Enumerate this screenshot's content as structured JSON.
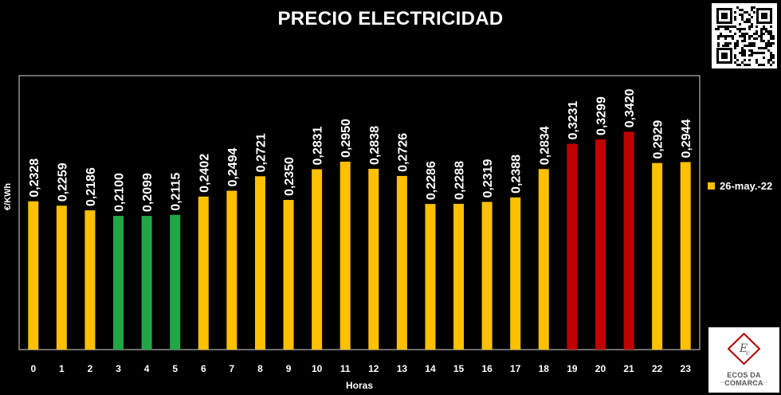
{
  "title": "PRECIO ELECTRICIDAD",
  "chart_data": {
    "type": "bar",
    "title": "PRECIO ELECTRICIDAD",
    "xlabel": "Horas",
    "ylabel": "€/KWh",
    "categories": [
      "0",
      "1",
      "2",
      "3",
      "4",
      "5",
      "6",
      "7",
      "8",
      "9",
      "10",
      "11",
      "12",
      "13",
      "14",
      "15",
      "16",
      "17",
      "18",
      "19",
      "20",
      "21",
      "22",
      "23"
    ],
    "series": [
      {
        "name": "26-may.-22",
        "values": [
          0.2328,
          0.2259,
          0.2186,
          0.21,
          0.2099,
          0.2115,
          0.2402,
          0.2494,
          0.2721,
          0.235,
          0.2831,
          0.295,
          0.2838,
          0.2726,
          0.2286,
          0.2288,
          0.2319,
          0.2388,
          0.2834,
          0.3231,
          0.3299,
          0.342,
          0.2929,
          0.2944
        ],
        "labels": [
          "0,2328",
          "0,2259",
          "0,2186",
          "0,2100",
          "0,2099",
          "0,2115",
          "0,2402",
          "0,2494",
          "0,2721",
          "0,2350",
          "0,2831",
          "0,2950",
          "0,2838",
          "0,2726",
          "0,2286",
          "0,2288",
          "0,2319",
          "0,2388",
          "0,2834",
          "0,3231",
          "0,3299",
          "0,3420",
          "0,2929",
          "0,2944"
        ],
        "bar_colors": [
          "yellow",
          "yellow",
          "yellow",
          "green",
          "green",
          "green",
          "yellow",
          "yellow",
          "yellow",
          "yellow",
          "yellow",
          "yellow",
          "yellow",
          "yellow",
          "yellow",
          "yellow",
          "yellow",
          "yellow",
          "yellow",
          "red",
          "red",
          "red",
          "yellow",
          "yellow"
        ]
      }
    ],
    "colors": {
      "yellow": "#FFC000",
      "green": "#1FA845",
      "red": "#C00000",
      "background": "#000000"
    },
    "ylim": [
      0,
      0.43
    ],
    "legend_position": "right",
    "grid": false
  },
  "legend": {
    "label": "26-may.-22"
  },
  "logo": {
    "name": "ECOS DA COMARCA"
  }
}
